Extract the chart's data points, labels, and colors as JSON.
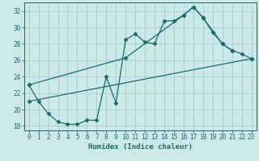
{
  "xlabel": "Humidex (Indice chaleur)",
  "bg_color": "#cce8e8",
  "grid_color": "#99cccc",
  "line_color": "#1a6b6b",
  "xlim": [
    -0.5,
    23.5
  ],
  "ylim": [
    17.5,
    33.0
  ],
  "yticks": [
    18,
    20,
    22,
    24,
    26,
    28,
    30,
    32
  ],
  "xticks": [
    0,
    1,
    2,
    3,
    4,
    5,
    6,
    7,
    8,
    9,
    10,
    11,
    12,
    13,
    14,
    15,
    16,
    17,
    18,
    19,
    20,
    21,
    22,
    23
  ],
  "line1_x": [
    0,
    1,
    2,
    3,
    4,
    5,
    6,
    7,
    8,
    9,
    10,
    11,
    12,
    13,
    14,
    15,
    16,
    17,
    18,
    19,
    20,
    21
  ],
  "line1_y": [
    23.0,
    21.0,
    19.5,
    18.5,
    18.2,
    18.2,
    18.7,
    18.7,
    24.0,
    20.8,
    28.5,
    29.2,
    28.2,
    28.0,
    30.8,
    30.8,
    31.5,
    32.5,
    31.2,
    29.4,
    28.0,
    27.2
  ],
  "line2_x": [
    0,
    10,
    16,
    17,
    18,
    20,
    21,
    22,
    23
  ],
  "line2_y": [
    23.0,
    26.3,
    31.5,
    32.5,
    31.2,
    28.0,
    27.2,
    26.8,
    26.2
  ],
  "line3_x": [
    0,
    23
  ],
  "line3_y": [
    21.0,
    26.2
  ]
}
